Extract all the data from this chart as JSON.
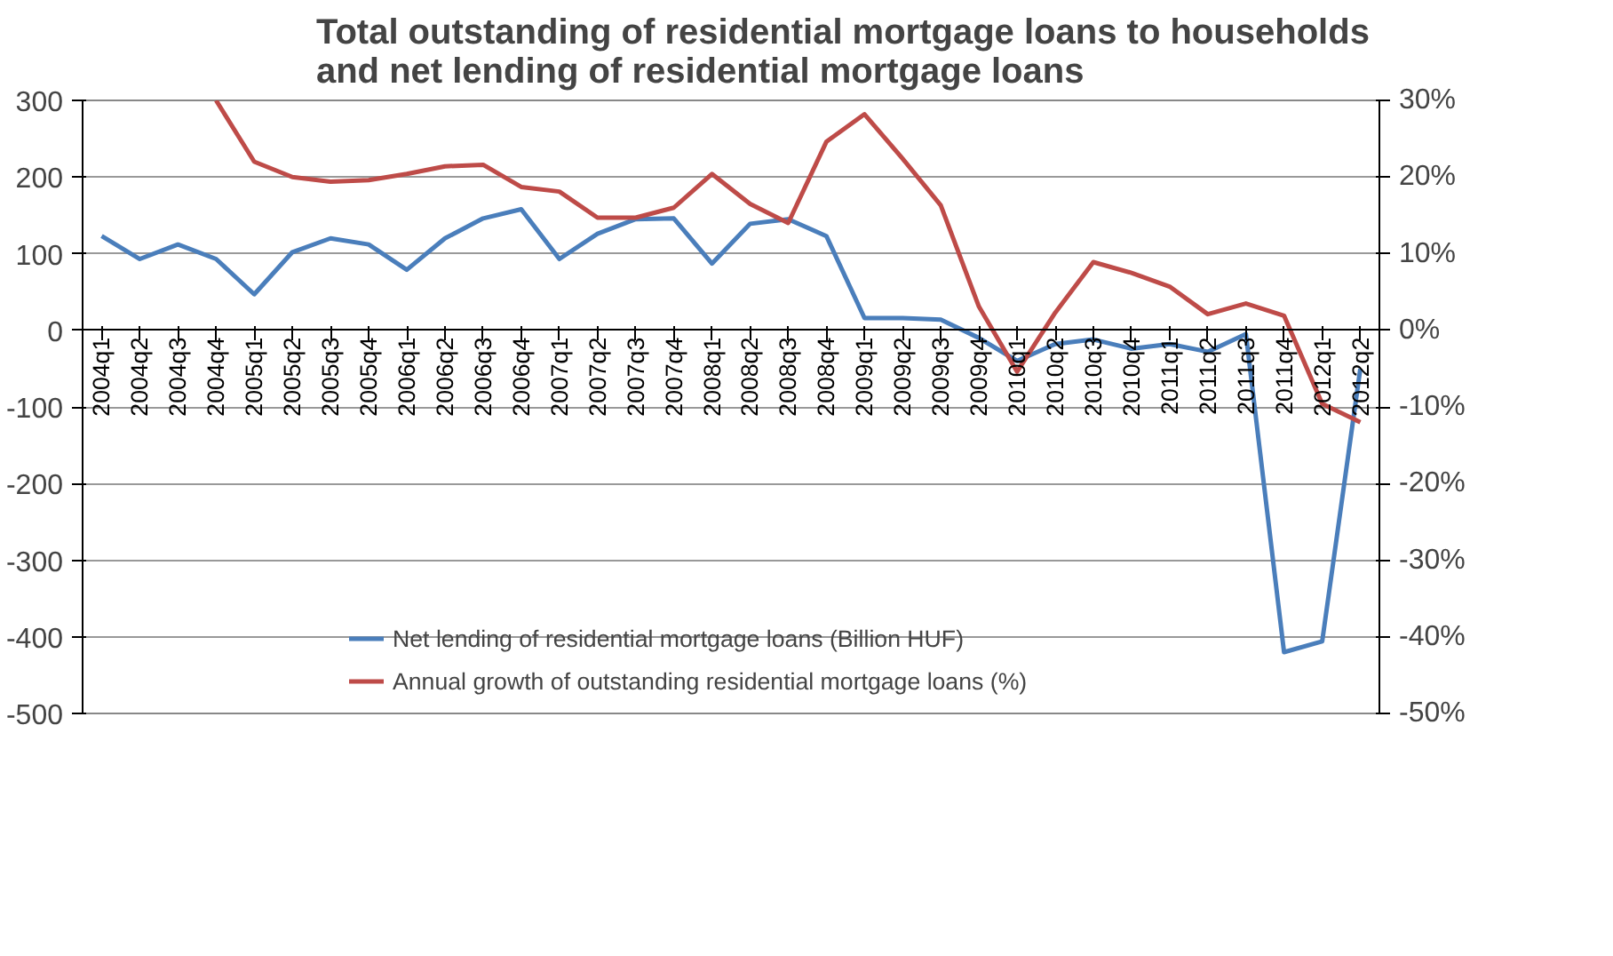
{
  "chart_data": {
    "type": "line",
    "title": "Total  outstanding of residential mortgage loans to households\nand net lending of residential mortgage loans",
    "categories": [
      "2004q1",
      "2004q2",
      "2004q3",
      "2004q4",
      "2005q1",
      "2005q2",
      "2005q3",
      "2005q4",
      "2006q1",
      "2006q2",
      "2006q3",
      "2006q4",
      "2007q1",
      "2007q2",
      "2007q3",
      "2007q4",
      "2008q1",
      "2008q2",
      "2008q3",
      "2008q4",
      "2009q1",
      "2009q2",
      "2009q3",
      "2009q4",
      "2010q1",
      "2010q2",
      "2010q3",
      "2010q4",
      "2011q1",
      "2011q2",
      "2011q3",
      "2011q4",
      "2012q1",
      "2012q2"
    ],
    "series": [
      {
        "name": "Net lending of residential mortgage loans (Billion HUF)",
        "color": "#4a7ebb",
        "values": [
          123,
          93,
          112,
          93,
          47,
          102,
          120,
          112,
          79,
          120,
          146,
          158,
          93,
          126,
          145,
          146,
          87,
          139,
          145,
          123,
          16,
          16,
          14,
          -10,
          -40,
          -18,
          -12,
          -24,
          -18,
          -28,
          -5,
          -420,
          -406,
          -50
        ]
      },
      {
        "name": "Annual growth of outstanding residential mortgage loans (%)",
        "color": "#be4b48",
        "axis": "y2",
        "values": [
          null,
          null,
          null,
          30,
          22,
          20,
          19.4,
          19.6,
          20.4,
          21.4,
          21.6,
          18.7,
          18.1,
          14.7,
          14.7,
          16,
          20.4,
          16.5,
          14,
          24.6,
          28.2,
          22.4,
          16.3,
          3.1,
          -5.4,
          2.3,
          8.9,
          7.5,
          5.7,
          2.1,
          3.5,
          1.9,
          -9.6,
          -12
        ]
      }
    ],
    "ylim": [
      -500,
      300
    ],
    "yticks": [
      -500,
      -400,
      -300,
      -200,
      -100,
      0,
      100,
      200,
      300
    ],
    "y2lim": [
      -50,
      30
    ],
    "y2ticks": [
      {
        "value": -50,
        "label": "-50%"
      },
      {
        "value": -40,
        "label": "-40%"
      },
      {
        "value": -30,
        "label": "-30%"
      },
      {
        "value": -20,
        "label": "-20%"
      },
      {
        "value": -10,
        "label": "-10%"
      },
      {
        "value": 0,
        "label": "0%"
      },
      {
        "value": 10,
        "label": "10%"
      },
      {
        "value": 20,
        "label": "20%"
      },
      {
        "value": 30,
        "label": "30%"
      }
    ],
    "grid": "y",
    "legend": "bottom",
    "marker": "none",
    "line_style": "solid"
  }
}
